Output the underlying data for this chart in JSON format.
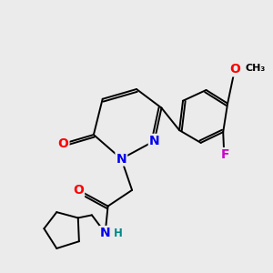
{
  "background_color": "#ebebeb",
  "bond_color": "#000000",
  "atom_colors": {
    "N": "#0000ee",
    "O": "#ff0000",
    "F": "#cc00cc",
    "C": "#000000",
    "H": "#008888"
  },
  "font_size_atom": 10,
  "font_size_small": 8.5,
  "lw": 1.4
}
